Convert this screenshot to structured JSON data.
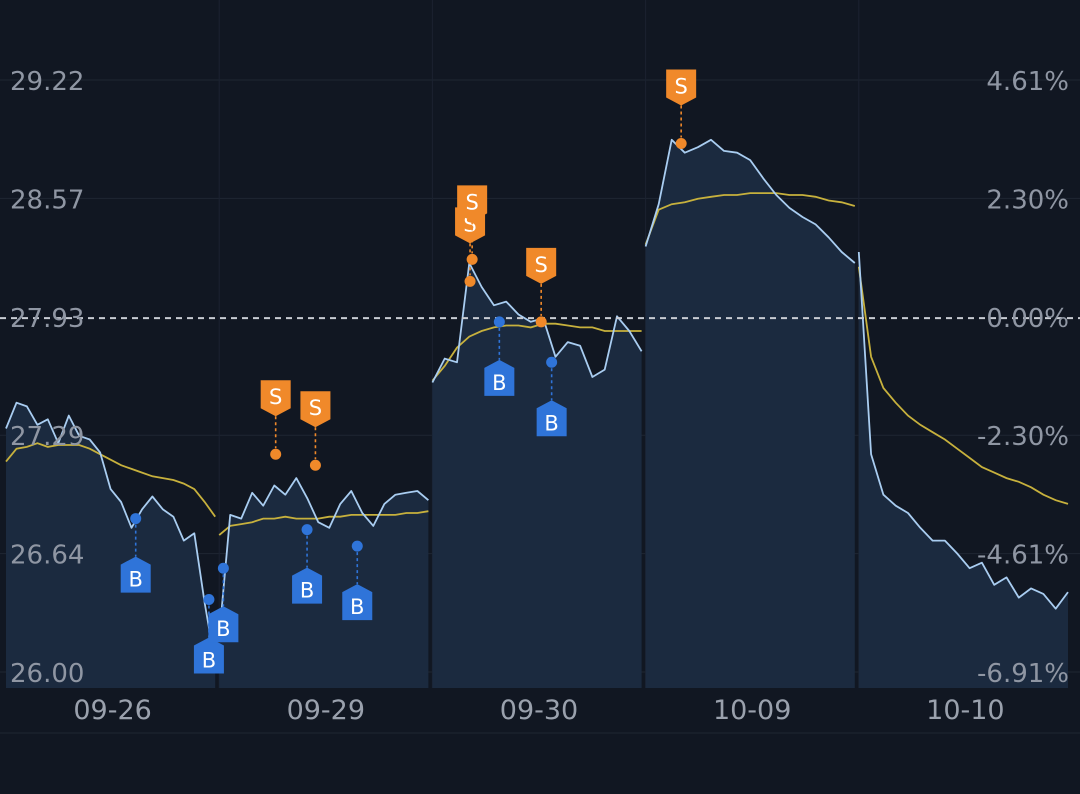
{
  "chart_data": {
    "type": "line",
    "y_axis_left": {
      "ticks": [
        "29.22",
        "28.57",
        "27.93",
        "27.29",
        "26.64",
        "26.00"
      ],
      "range": [
        26.0,
        29.22
      ]
    },
    "y_axis_right": {
      "ticks": [
        "4.61%",
        "2.30%",
        "0.00%",
        "-2.30%",
        "-4.61%",
        "-6.91%"
      ]
    },
    "baseline": 27.93,
    "x_axis": {
      "ticks": [
        "09-26",
        "09-29",
        "09-30",
        "10-09",
        "10-10"
      ]
    },
    "grid": true,
    "colors": {
      "background": "#111722",
      "price_line": "#a9cdf1",
      "average_line": "#c7b13d",
      "area_fill": "#1b2a3f",
      "baseline": "#c9cdd4",
      "buy": "#2f74d9",
      "sell": "#f0892a"
    },
    "series": [
      {
        "day": "09-26",
        "price": [
          27.33,
          27.47,
          27.45,
          27.35,
          27.38,
          27.25,
          27.4,
          27.29,
          27.27,
          27.2,
          27.0,
          26.93,
          26.79,
          26.89,
          26.96,
          26.89,
          26.85,
          26.72,
          26.76,
          26.38,
          26.05
        ],
        "average": [
          27.15,
          27.22,
          27.23,
          27.25,
          27.23,
          27.24,
          27.24,
          27.24,
          27.22,
          27.19,
          27.16,
          27.13,
          27.11,
          27.09,
          27.07,
          27.06,
          27.05,
          27.03,
          27.0,
          26.93,
          26.85
        ]
      },
      {
        "day": "09-29",
        "price": [
          26.2,
          26.86,
          26.84,
          26.98,
          26.91,
          27.02,
          26.97,
          27.06,
          26.95,
          26.82,
          26.79,
          26.92,
          26.99,
          26.87,
          26.8,
          26.92,
          26.97,
          26.98,
          26.99,
          26.94
        ],
        "average": [
          26.75,
          26.8,
          26.81,
          26.82,
          26.84,
          26.84,
          26.85,
          26.84,
          26.84,
          26.84,
          26.85,
          26.85,
          26.86,
          26.86,
          26.86,
          26.86,
          26.86,
          26.87,
          26.87,
          26.88
        ]
      },
      {
        "day": "09-30",
        "price": [
          27.58,
          27.71,
          27.69,
          28.23,
          28.1,
          28.0,
          28.02,
          27.95,
          27.91,
          27.93,
          27.72,
          27.8,
          27.78,
          27.61,
          27.65,
          27.94,
          27.86,
          27.75
        ],
        "average": [
          27.59,
          27.67,
          27.77,
          27.83,
          27.86,
          27.88,
          27.89,
          27.89,
          27.88,
          27.9,
          27.9,
          27.89,
          27.88,
          27.88,
          27.86,
          27.86,
          27.86,
          27.86
        ]
      },
      {
        "day": "10-09",
        "price": [
          28.32,
          28.55,
          28.9,
          28.83,
          28.86,
          28.9,
          28.84,
          28.83,
          28.79,
          28.69,
          28.6,
          28.53,
          28.48,
          28.44,
          28.37,
          28.29,
          28.23
        ],
        "average": [
          28.33,
          28.52,
          28.55,
          28.56,
          28.58,
          28.59,
          28.6,
          28.6,
          28.61,
          28.61,
          28.61,
          28.6,
          28.6,
          28.59,
          28.57,
          28.56,
          28.54
        ]
      },
      {
        "day": "10-10",
        "price": [
          28.29,
          27.19,
          26.97,
          26.91,
          26.87,
          26.79,
          26.72,
          26.72,
          26.65,
          26.57,
          26.6,
          26.48,
          26.52,
          26.41,
          26.46,
          26.43,
          26.35,
          26.44
        ],
        "average": [
          28.21,
          27.72,
          27.55,
          27.47,
          27.4,
          27.35,
          27.31,
          27.27,
          27.22,
          27.17,
          27.12,
          27.09,
          27.06,
          27.04,
          27.01,
          26.97,
          26.94,
          26.92
        ]
      }
    ],
    "trade_markers": [
      {
        "type": "buy",
        "label": "B",
        "day": "09-26",
        "at": 0.62,
        "price": 26.84
      },
      {
        "type": "buy",
        "label": "B",
        "day": "09-26",
        "at": 0.97,
        "price": 26.4
      },
      {
        "type": "buy",
        "label": "B",
        "day": "09-29",
        "at": 0.02,
        "price": 26.57
      },
      {
        "type": "buy",
        "label": "B",
        "day": "09-29",
        "at": 0.42,
        "price": 26.78
      },
      {
        "type": "buy",
        "label": "B",
        "day": "09-29",
        "at": 0.66,
        "price": 26.69
      },
      {
        "type": "sell",
        "label": "S",
        "day": "09-29",
        "at": 0.27,
        "price": 27.19
      },
      {
        "type": "sell",
        "label": "S",
        "day": "09-29",
        "at": 0.46,
        "price": 27.13
      },
      {
        "type": "sell",
        "label": "S",
        "day": "09-30",
        "at": 0.18,
        "price": 28.13
      },
      {
        "type": "sell",
        "label": "S",
        "day": "09-30",
        "at": 0.19,
        "price": 28.25
      },
      {
        "type": "buy",
        "label": "B",
        "day": "09-30",
        "at": 0.32,
        "price": 27.91
      },
      {
        "type": "sell",
        "label": "S",
        "day": "09-30",
        "at": 0.52,
        "price": 27.91
      },
      {
        "type": "buy",
        "label": "B",
        "day": "09-30",
        "at": 0.57,
        "price": 27.69
      },
      {
        "type": "sell",
        "label": "S",
        "day": "10-09",
        "at": 0.17,
        "price": 28.88
      }
    ]
  }
}
